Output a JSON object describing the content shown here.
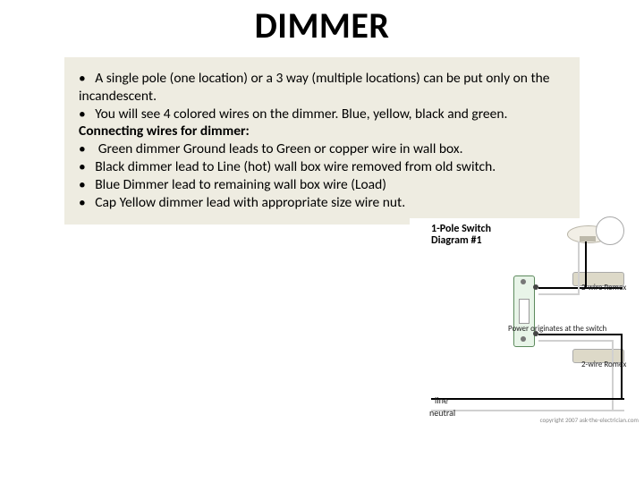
{
  "title": "DIMMER",
  "content": {
    "bullets": [
      "A single pole (one location) or a 3 way (multiple locations) can be put only on the incandescent.",
      "You will see 4 colored wires on the dimmer. Blue, yellow, black and green."
    ],
    "subheading": "Connecting wires for dimmer:",
    "sub_bullets": [
      "Green dimmer Ground leads to Green or copper wire in wall box.",
      "Black dimmer lead to Line (hot) wall box wire removed from old switch.",
      "Blue Dimmer lead to remaining wall box wire (Load)",
      "Cap Yellow dimmer lead with appropriate size wire nut."
    ]
  },
  "diagram": {
    "type": "wiring-diagram",
    "title_line1": "1-Pole Switch",
    "title_line2": "Diagram #1",
    "labels": {
      "romex_top": "2-wire Romex",
      "romex_bottom": "2-wire Romex",
      "power_note": "Power originates at the switch",
      "line": "line",
      "neutral": "neutral",
      "copyright": "copyright 2007 ask-the-electrician.com"
    },
    "colors": {
      "slide_bg": "#ffffff",
      "content_bg": "#eeece1",
      "text": "#000000",
      "wire_hot": "#000000",
      "wire_neutral": "#d0d0d0",
      "switch_body": "#e8f4e8",
      "switch_border": "#5d8a5d",
      "romex_jacket": "#ddd9c8"
    },
    "fonts": {
      "title_pt": 40,
      "body_pt": 15.5,
      "diagram_title_pt": 12,
      "diagram_label_pt": 9
    }
  }
}
